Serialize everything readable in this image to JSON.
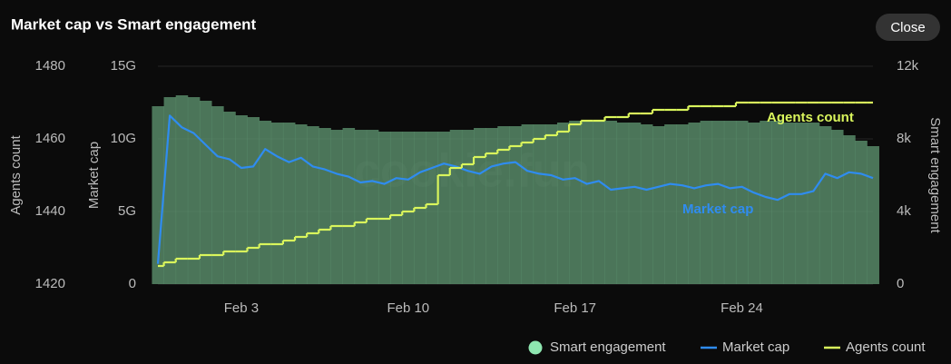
{
  "chart_data": {
    "type": "combo",
    "title": "Market cap vs Smart engagement",
    "close_button": "Close",
    "watermark": "cookie.fun",
    "y3_label": "Agents count",
    "y_label": "Market cap",
    "y2_label": "Smart engagement",
    "categories": [
      null,
      null,
      null,
      null,
      null,
      null,
      null,
      "Feb 3",
      null,
      null,
      null,
      null,
      null,
      null,
      null,
      null,
      null,
      null,
      null,
      null,
      null,
      "Feb 10",
      null,
      null,
      null,
      null,
      null,
      null,
      null,
      null,
      null,
      null,
      null,
      null,
      null,
      "Feb 17",
      null,
      null,
      null,
      null,
      null,
      null,
      null,
      null,
      null,
      null,
      null,
      null,
      null,
      "Feb 24",
      null,
      null,
      null,
      null,
      null,
      null,
      null,
      null,
      null,
      null,
      null
    ],
    "ylim": [
      0,
      15000000000
    ],
    "yticks": [
      0,
      {
        "value": 5000000000,
        "label": "5G"
      },
      {
        "value": 10000000000,
        "label": "10G"
      },
      {
        "value": 15000000000,
        "label": "15G"
      }
    ],
    "y2lim": [
      0,
      12000
    ],
    "y2ticks": [
      0,
      {
        "value": 4000,
        "label": "4k"
      },
      {
        "value": 8000,
        "label": "8k"
      },
      {
        "value": 12000,
        "label": "12k"
      }
    ],
    "y3lim": [
      1420,
      1480
    ],
    "y3ticks": [
      1420,
      1440,
      1460,
      1480
    ],
    "grid": true,
    "legend": "bottom-right",
    "series": [
      {
        "name": "Smart engagement",
        "type": "bar",
        "axis": "y2",
        "color": "#5e9470",
        "values": [
          9800,
          10300,
          10400,
          10300,
          10100,
          9800,
          9500,
          9300,
          9200,
          9000,
          8900,
          8900,
          8800,
          8700,
          8600,
          8500,
          8600,
          8500,
          8500,
          8400,
          8400,
          8400,
          8400,
          8400,
          8400,
          8500,
          8500,
          8600,
          8600,
          8700,
          8700,
          8800,
          8800,
          8800,
          8900,
          9000,
          9000,
          9000,
          9000,
          8900,
          8900,
          8800,
          8700,
          8800,
          8800,
          8900,
          9000,
          9000,
          9000,
          9000,
          8900,
          9000,
          9000,
          8900,
          8900,
          8900,
          8700,
          8500,
          8200,
          7900,
          7600
        ]
      },
      {
        "name": "Market cap",
        "type": "line",
        "axis": "y",
        "color": "#2f8cf0",
        "values": [
          1400000000,
          11600000000,
          10800000000,
          10400000000,
          9600000000,
          8800000000,
          8600000000,
          8000000000,
          8100000000,
          9300000000,
          8800000000,
          8400000000,
          8700000000,
          8100000000,
          7900000000,
          7600000000,
          7400000000,
          7000000000,
          7100000000,
          6900000000,
          7300000000,
          7200000000,
          7700000000,
          8000000000,
          8300000000,
          8100000000,
          7800000000,
          7600000000,
          8100000000,
          8300000000,
          8400000000,
          7800000000,
          7600000000,
          7500000000,
          7200000000,
          7300000000,
          6900000000,
          7100000000,
          6500000000,
          6600000000,
          6700000000,
          6500000000,
          6700000000,
          6900000000,
          6800000000,
          6600000000,
          6800000000,
          6900000000,
          6600000000,
          6700000000,
          6300000000,
          6000000000,
          5800000000,
          6200000000,
          6200000000,
          6400000000,
          7600000000,
          7300000000,
          7700000000,
          7600000000,
          7300000000
        ]
      },
      {
        "name": "Agents count",
        "type": "step",
        "axis": "y3",
        "color": "#d9f55c",
        "values": [
          1425,
          1426,
          1427,
          1427,
          1428,
          1428,
          1429,
          1429,
          1430,
          1431,
          1431,
          1432,
          1433,
          1434,
          1435,
          1436,
          1436,
          1437,
          1438,
          1438,
          1439,
          1440,
          1441,
          1442,
          1450,
          1452,
          1453,
          1455,
          1456,
          1457,
          1458,
          1459,
          1460,
          1461,
          1462,
          1464,
          1465,
          1465,
          1466,
          1466,
          1467,
          1467,
          1468,
          1468,
          1468,
          1469,
          1469,
          1469,
          1469,
          1470,
          1470,
          1470,
          1470,
          1470,
          1470,
          1470,
          1470,
          1470,
          1470,
          1470,
          1470
        ]
      }
    ]
  }
}
